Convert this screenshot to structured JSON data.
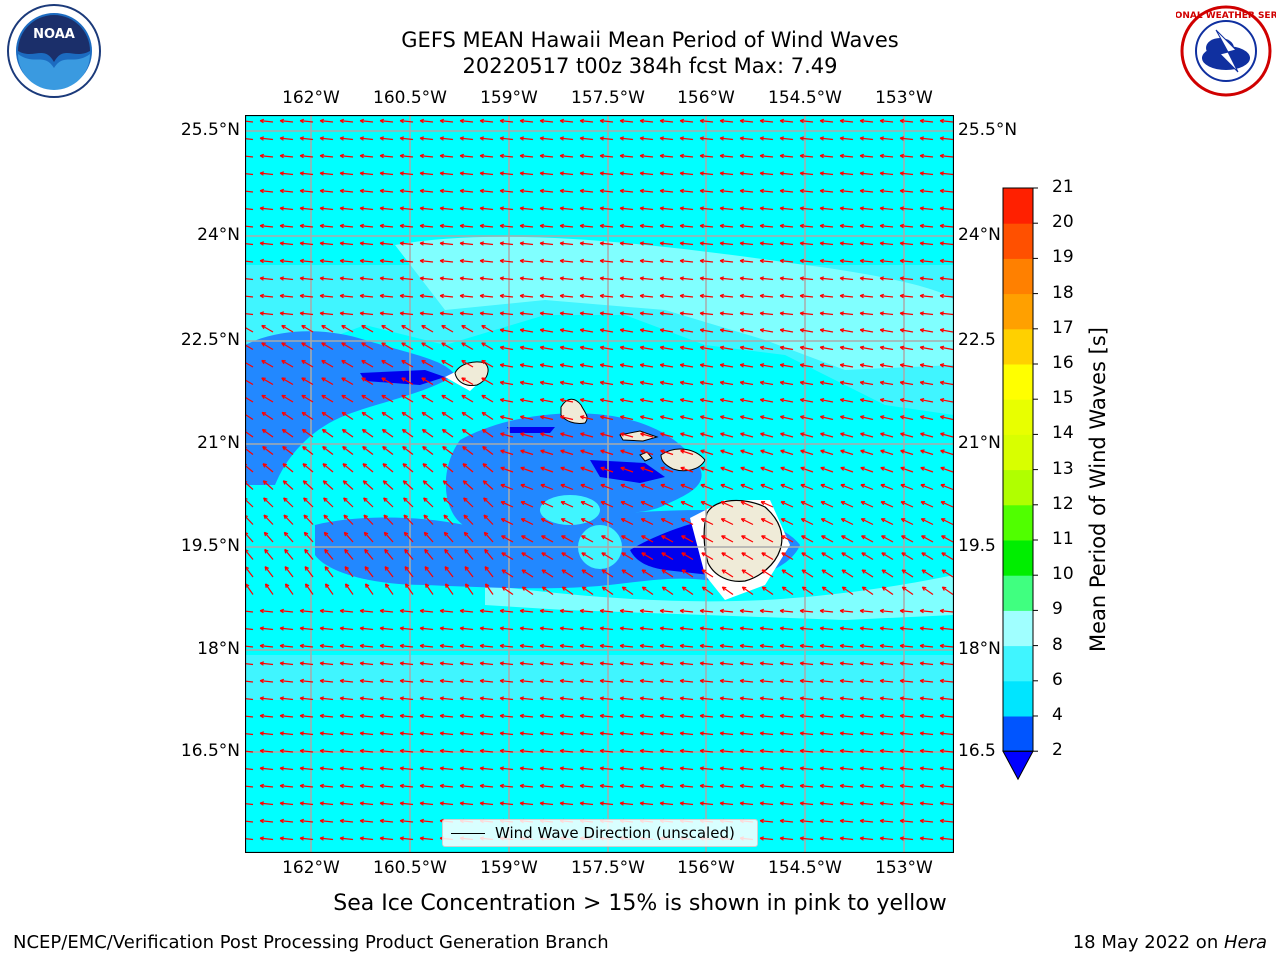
{
  "title_line1": "GEFS MEAN Hawaii Mean Period of Wind Waves",
  "title_line2": "20220517 t00z 384h fcst   Max: 7.49",
  "lon_ticks": [
    "162°W",
    "160.5°W",
    "159°W",
    "157.5°W",
    "156°W",
    "154.5°W",
    "153°W"
  ],
  "lat_ticks_left": [
    "25.5°N",
    "24°N",
    "22.5°N",
    "21°N",
    "19.5°N",
    "18°N",
    "16.5°N"
  ],
  "lat_ticks_right": [
    "25.5°N",
    "24°N",
    "22.5",
    "21°N",
    "19.5",
    "18°N",
    "16.5"
  ],
  "legend_label": "Wind Wave Direction (unscaled)",
  "colorbar": {
    "title": "Mean Period of Wind Waves [s]",
    "levels": [
      "2",
      "4",
      "6",
      "8",
      "9",
      "10",
      "11",
      "12",
      "13",
      "14",
      "15",
      "16",
      "17",
      "18",
      "19",
      "20",
      "21"
    ],
    "colors": [
      "#0055ff",
      "#00e5ff",
      "#40f5ff",
      "#a0ffff",
      "#40ff80",
      "#00ee00",
      "#50ff00",
      "#b0ff00",
      "#d8ff00",
      "#e8ff00",
      "#ffff00",
      "#ffd000",
      "#ffa000",
      "#ff8000",
      "#ff5000",
      "#ff2000"
    ],
    "extend_color": "#0000ff"
  },
  "notice": "Sea Ice Concentration > 15% is shown in pink to yellow",
  "footer_left": "NCEP/EMC/Verification Post Processing Product Generation Branch",
  "footer_right_date": "18 May 2022 on ",
  "footer_right_machine": "Hera",
  "logo_left": "NOAA",
  "logo_right": "NATIONAL WEATHER SERVICE",
  "colors": {
    "ocean_base": "#00ffff",
    "ocean_light": "#80ffff",
    "ocean_mid": "#2288ff",
    "ocean_dark": "#0000ee",
    "land": "#efebd8",
    "arrows": "#ff0000",
    "grid": "#aaaaaa"
  }
}
